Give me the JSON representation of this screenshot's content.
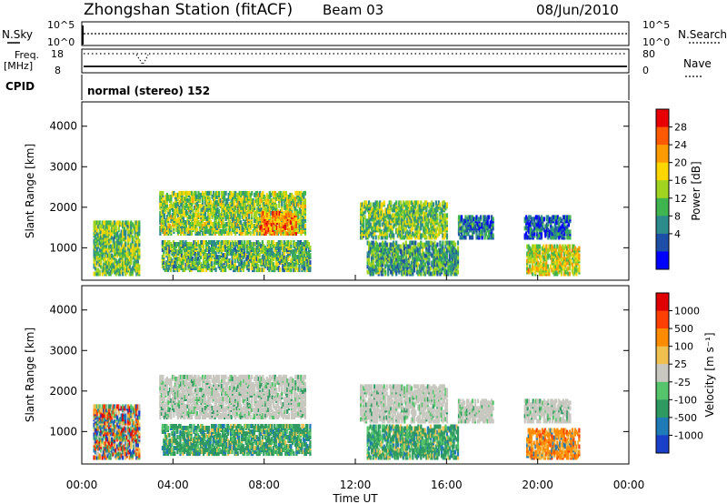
{
  "header": {
    "title": "Zhongshan Station (fitACF)",
    "beam": "Beam 03",
    "date": "08/Jun/2010"
  },
  "housekeeping": {
    "nsky_label": "N.Sky",
    "nsky_ticks": [
      "10^5",
      "10^0"
    ],
    "nsearch_label": "N.Search",
    "nsearch_ticks": [
      "10^5",
      "10^0"
    ],
    "freq_label": "Freq.",
    "freq_unit": "[MHz]",
    "freq_ticks": [
      "18",
      "8"
    ],
    "nave_label": "Nave",
    "nave_ticks": [
      "80",
      "0"
    ],
    "cpid_label": "CPID",
    "cpid_text": "normal (stereo) 152"
  },
  "chart_data": [
    {
      "type": "heatmap",
      "name": "power-panel",
      "ylabel": "Slant Range [km]",
      "y_ticks": [
        "4000",
        "3000",
        "2000",
        "1000"
      ],
      "y_tick_values": [
        4000,
        3000,
        2000,
        1000
      ],
      "ylim": [
        200,
        4600
      ],
      "xlim_hours": [
        0,
        24
      ],
      "colorbar": {
        "label": "Power [dB]",
        "ticks": [
          "28",
          "24",
          "20",
          "16",
          "12",
          "8",
          "4"
        ],
        "range": [
          0,
          32
        ],
        "colors": [
          "#0000ff",
          "#1d4ea8",
          "#2e8b8b",
          "#3fb44f",
          "#a0d420",
          "#ffd700",
          "#ff9a00",
          "#ff5a00",
          "#e80000"
        ]
      },
      "echo_regions": [
        {
          "t0": 0.5,
          "t1": 2.5,
          "r0": 300,
          "r1": 1600,
          "level": 14
        },
        {
          "t0": 3.4,
          "t1": 9.8,
          "r0": 1300,
          "r1": 2300,
          "level": 15
        },
        {
          "t0": 7.8,
          "t1": 9.4,
          "r0": 1300,
          "r1": 1800,
          "level": 24
        },
        {
          "t0": 3.5,
          "t1": 10.0,
          "r0": 400,
          "r1": 1100,
          "level": 13
        },
        {
          "t0": 12.2,
          "t1": 16.0,
          "r0": 1200,
          "r1": 2100,
          "level": 14
        },
        {
          "t0": 12.5,
          "t1": 16.5,
          "r0": 300,
          "r1": 1100,
          "level": 11
        },
        {
          "t0": 16.5,
          "t1": 18.0,
          "r0": 1200,
          "r1": 1700,
          "level": 8
        },
        {
          "t0": 19.4,
          "t1": 21.4,
          "r0": 1200,
          "r1": 1700,
          "level": 7
        },
        {
          "t0": 19.5,
          "t1": 21.8,
          "r0": 300,
          "r1": 1000,
          "level": 18
        }
      ]
    },
    {
      "type": "heatmap",
      "name": "velocity-panel",
      "ylabel": "Slant Range [km]",
      "y_ticks": [
        "4000",
        "3000",
        "2000",
        "1000"
      ],
      "y_tick_values": [
        4000,
        3000,
        2000,
        1000
      ],
      "ylim": [
        200,
        4600
      ],
      "xlim_hours": [
        0,
        24
      ],
      "xlabel": "Time UT",
      "x_ticks": [
        "00:00",
        "04:00",
        "08:00",
        "12:00",
        "16:00",
        "20:00",
        "00:00"
      ],
      "colorbar": {
        "label": "Velocity [m s⁻¹]",
        "ticks": [
          "1000",
          "500",
          "100",
          "25",
          "-25",
          "-100",
          "-500",
          "-1000"
        ],
        "colors": [
          "#1a3fc9",
          "#1f7ab8",
          "#2e9960",
          "#55c46a",
          "#c8c8c0",
          "#f0c050",
          "#ff8c00",
          "#ff4000",
          "#e00000"
        ]
      },
      "echo_regions": [
        {
          "t0": 0.5,
          "t1": 2.5,
          "r0": 300,
          "r1": 1600,
          "level": "mixed"
        },
        {
          "t0": 3.4,
          "t1": 9.8,
          "r0": 1300,
          "r1": 2300,
          "level": "gray"
        },
        {
          "t0": 3.5,
          "t1": 10.0,
          "r0": 400,
          "r1": 1100,
          "level": "green"
        },
        {
          "t0": 12.2,
          "t1": 16.0,
          "r0": 1200,
          "r1": 2100,
          "level": "gray"
        },
        {
          "t0": 12.5,
          "t1": 16.5,
          "r0": 300,
          "r1": 1100,
          "level": "green"
        },
        {
          "t0": 16.5,
          "t1": 18.0,
          "r0": 1200,
          "r1": 1700,
          "level": "gray"
        },
        {
          "t0": 19.4,
          "t1": 21.4,
          "r0": 1200,
          "r1": 1700,
          "level": "gray"
        },
        {
          "t0": 19.5,
          "t1": 21.8,
          "r0": 300,
          "r1": 1000,
          "level": "orange"
        }
      ]
    }
  ]
}
